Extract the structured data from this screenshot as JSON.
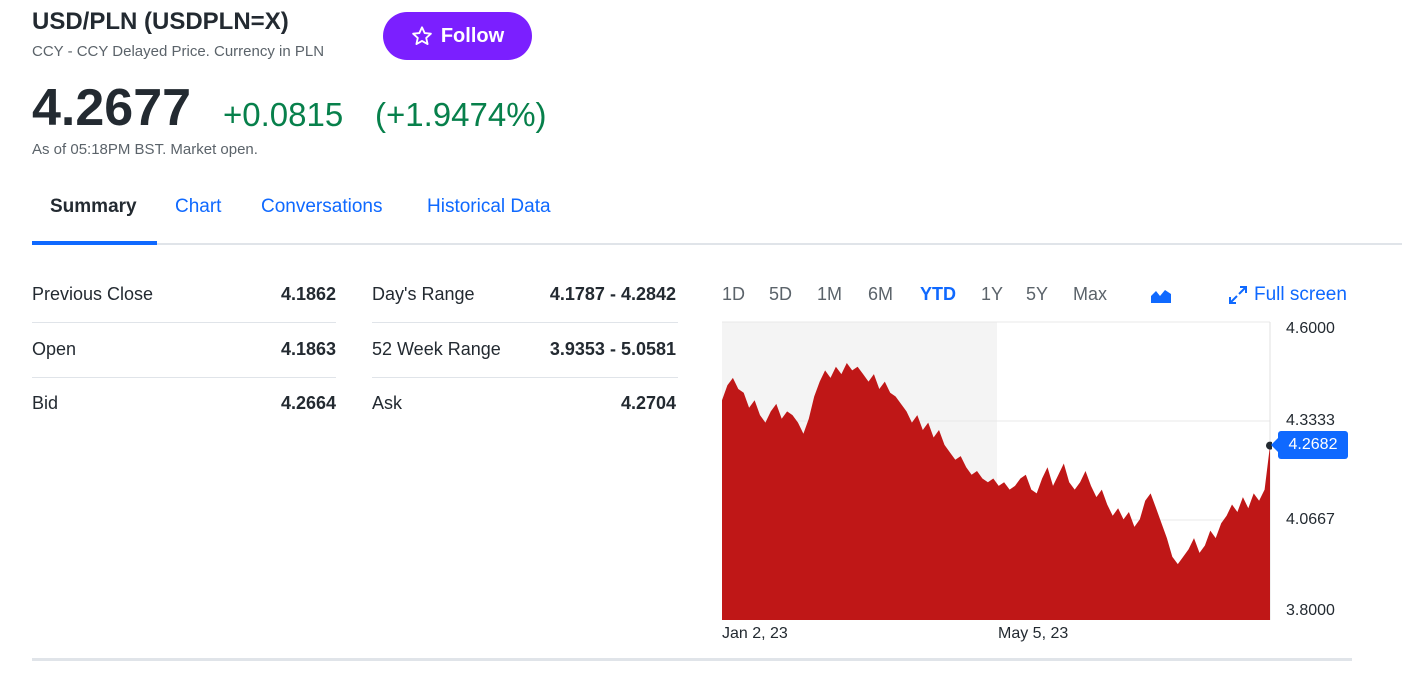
{
  "header": {
    "title": "USD/PLN (USDPLN=X)",
    "subtitle": "CCY - CCY Delayed Price. Currency in PLN",
    "follow_label": "Follow",
    "price": "4.2677",
    "change": "+0.0815",
    "change_pct": "(+1.9474%)",
    "as_of": "As of 05:18PM BST. Market open."
  },
  "tabs": [
    {
      "label": "Summary",
      "active": true
    },
    {
      "label": "Chart",
      "active": false
    },
    {
      "label": "Conversations",
      "active": false
    },
    {
      "label": "Historical Data",
      "active": false
    }
  ],
  "stats": {
    "left": [
      {
        "label": "Previous Close",
        "value": "4.1862"
      },
      {
        "label": "Open",
        "value": "4.1863"
      },
      {
        "label": "Bid",
        "value": "4.2664"
      }
    ],
    "right": [
      {
        "label": "Day's Range",
        "value": "4.1787 - 4.2842"
      },
      {
        "label": "52 Week Range",
        "value": "3.9353 - 5.0581"
      },
      {
        "label": "Ask",
        "value": "4.2704"
      }
    ]
  },
  "chart_controls": {
    "ranges": [
      "1D",
      "5D",
      "1M",
      "6M",
      "YTD",
      "1Y",
      "5Y",
      "Max"
    ],
    "active_range": "YTD",
    "chart_type_icon": "area-chart-icon",
    "fullscreen_label": "Full screen"
  },
  "colors": {
    "accent": "#0f69ff",
    "follow": "#7b1fff",
    "positive": "#07804b",
    "area_fill": "#bf1717"
  },
  "chart_data": {
    "type": "area",
    "ylim": [
      3.8,
      4.6
    ],
    "yticks": [
      "4.6000",
      "4.3333",
      "4.0667",
      "3.8000"
    ],
    "xticks": [
      "Jan 2, 23",
      "May 5, 23"
    ],
    "current_label": "4.2682",
    "current_value": 4.2682,
    "values": [
      4.39,
      4.43,
      4.45,
      4.42,
      4.41,
      4.37,
      4.39,
      4.35,
      4.33,
      4.36,
      4.38,
      4.34,
      4.36,
      4.35,
      4.33,
      4.3,
      4.34,
      4.4,
      4.44,
      4.47,
      4.45,
      4.48,
      4.46,
      4.49,
      4.47,
      4.48,
      4.46,
      4.44,
      4.46,
      4.42,
      4.44,
      4.41,
      4.4,
      4.38,
      4.36,
      4.33,
      4.35,
      4.31,
      4.33,
      4.29,
      4.31,
      4.27,
      4.25,
      4.23,
      4.24,
      4.21,
      4.19,
      4.2,
      4.18,
      4.17,
      4.18,
      4.16,
      4.17,
      4.15,
      4.16,
      4.18,
      4.19,
      4.15,
      4.14,
      4.18,
      4.21,
      4.16,
      4.19,
      4.22,
      4.17,
      4.15,
      4.17,
      4.2,
      4.16,
      4.13,
      4.15,
      4.11,
      4.08,
      4.1,
      4.07,
      4.09,
      4.05,
      4.07,
      4.12,
      4.14,
      4.1,
      4.06,
      4.02,
      3.97,
      3.95,
      3.97,
      3.99,
      4.02,
      3.98,
      4.0,
      4.04,
      4.02,
      4.06,
      4.08,
      4.11,
      4.09,
      4.13,
      4.1,
      4.14,
      4.12,
      4.15,
      4.2682
    ]
  }
}
